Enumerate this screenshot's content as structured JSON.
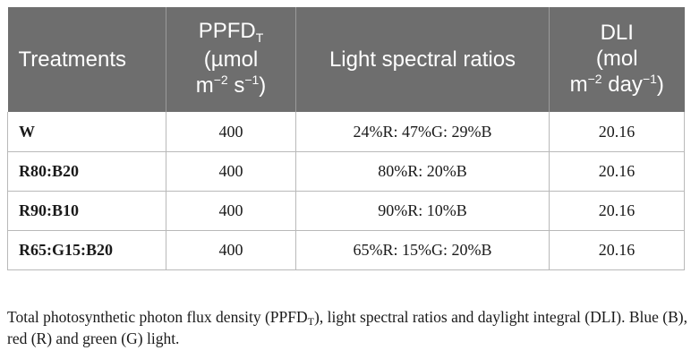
{
  "table": {
    "headers": {
      "treatments": "Treatments",
      "ppfd": {
        "line1_main": "PPFD",
        "line1_sub": "T",
        "line2": "(µmol",
        "line3_a": "m",
        "line3_sup1": "−2",
        "line3_b": " s",
        "line3_sup2": "−1",
        "line3_c": ")"
      },
      "spectral": "Light spectral ratios",
      "dli": {
        "line1": "DLI",
        "line2": "(mol",
        "line3_a": "m",
        "line3_sup1": "−2",
        "line3_b": " day",
        "line3_sup2": "−1",
        "line3_c": ")"
      }
    },
    "rows": [
      {
        "treatment": "W",
        "ppfd": "400",
        "spectral": "24%R: 47%G: 29%B",
        "dli": "20.16"
      },
      {
        "treatment": "R80:B20",
        "ppfd": "400",
        "spectral": "80%R: 20%B",
        "dli": "20.16"
      },
      {
        "treatment": "R90:B10",
        "ppfd": "400",
        "spectral": "90%R: 10%B",
        "dli": "20.16"
      },
      {
        "treatment": "R65:G15:B20",
        "ppfd": "400",
        "spectral": "65%R: 15%G: 20%B",
        "dli": "20.16"
      }
    ]
  },
  "caption": {
    "part1": "Total photosynthetic photon flux density (PPFD",
    "sub": "T",
    "part2": "), light spectral ratios and daylight integral (DLI). Blue (B), red (R) and green (G) light."
  }
}
